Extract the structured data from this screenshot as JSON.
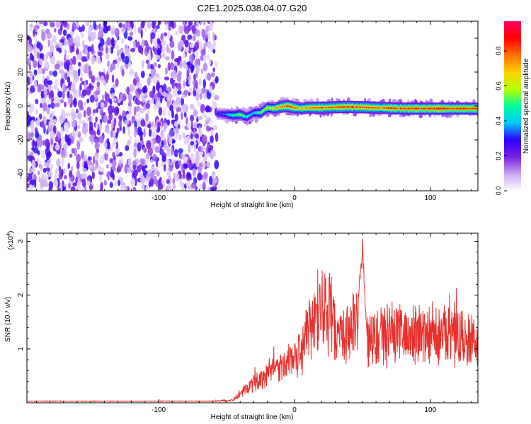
{
  "figure_title": "C2E1.2025.038.04.07.G20",
  "chart_data": [
    {
      "type": "heatmap",
      "title": "C2E1.2025.038.04.07.G20",
      "xlabel": "Height of straight line (km)",
      "ylabel": "Frequency (Hz)",
      "xlim": [
        -197,
        135
      ],
      "ylim": [
        -50,
        50
      ],
      "x_ticks": [
        -100,
        0,
        100
      ],
      "x_tick_labels": [
        "-100",
        "0",
        "100"
      ],
      "y_ticks": [
        -40,
        -20,
        0,
        20,
        40
      ],
      "y_tick_labels": [
        "-40",
        "-20",
        "0",
        "20",
        "40"
      ],
      "colorbar": {
        "label": "Normalized spectral amplitude",
        "range": [
          0,
          0.97
        ],
        "ticks": [
          0,
          0.2,
          0.4,
          0.6,
          0.8
        ],
        "tick_labels": [
          "0.0",
          "0.2",
          "0.4",
          "0.6",
          "0.8"
        ],
        "colormap": [
          "#ffffff",
          "#c9a6f2",
          "#7b1fe0",
          "#2e00ff",
          "#00c8ff",
          "#00ff9a",
          "#b8ff00",
          "#ffd000",
          "#ff7000",
          "#ff0000",
          "#ff0066"
        ]
      },
      "noise_region_x": [
        -197,
        -57
      ],
      "signal_track": {
        "x": [
          -57,
          -50,
          -45,
          -40,
          -35,
          -30,
          -25,
          -20,
          -15,
          -10,
          -5,
          0,
          5,
          10,
          20,
          40,
          60,
          80,
          100,
          120,
          135
        ],
        "frequency": [
          -4.5,
          -5,
          -5.5,
          -5,
          -6.5,
          -4,
          -4,
          -1,
          -1.5,
          -0.5,
          0,
          -1,
          -1.5,
          -1,
          -1,
          -0.5,
          -1,
          -1.5,
          -1.5,
          -1.5,
          -1.5
        ],
        "peak_amplitude": [
          0.3,
          0.45,
          0.55,
          0.6,
          0.55,
          0.45,
          0.6,
          0.7,
          0.75,
          0.85,
          0.95,
          0.9,
          0.8,
          0.85,
          0.9,
          0.92,
          0.9,
          0.92,
          0.95,
          0.93,
          0.95
        ]
      }
    },
    {
      "type": "line",
      "xlabel": "Height of straight line (km)",
      "ylabel": "SNR (10 * v/v)",
      "multiplier_label": "(x10",
      "multiplier_exponent": "4",
      "multiplier_close": ")",
      "xlim": [
        -197,
        135
      ],
      "ylim": [
        0,
        3.15
      ],
      "x_ticks": [
        -100,
        0,
        100
      ],
      "x_tick_labels": [
        "-100",
        "0",
        "100"
      ],
      "y_ticks": [
        1,
        2,
        3
      ],
      "y_tick_labels": [
        "1",
        "2",
        "3"
      ],
      "line_color": "#e8302c",
      "series_envelope": {
        "x": [
          -197,
          -60,
          -45,
          -40,
          -30,
          -20,
          -10,
          -5,
          0,
          5,
          10,
          15,
          20,
          25,
          30,
          35,
          40,
          45,
          48,
          50,
          55,
          60,
          70,
          80,
          90,
          100,
          110,
          120,
          130,
          135
        ],
        "y": [
          0.03,
          0.03,
          0.05,
          0.2,
          0.4,
          0.55,
          0.7,
          0.8,
          0.9,
          1.1,
          1.5,
          1.7,
          1.95,
          1.9,
          1.5,
          1.3,
          1.4,
          1.6,
          2.0,
          1.5,
          1.3,
          1.35,
          1.4,
          1.45,
          1.4,
          1.45,
          1.35,
          1.35,
          1.3,
          1.2
        ]
      },
      "series_peak": {
        "x": 50,
        "y": 3.1
      }
    }
  ]
}
